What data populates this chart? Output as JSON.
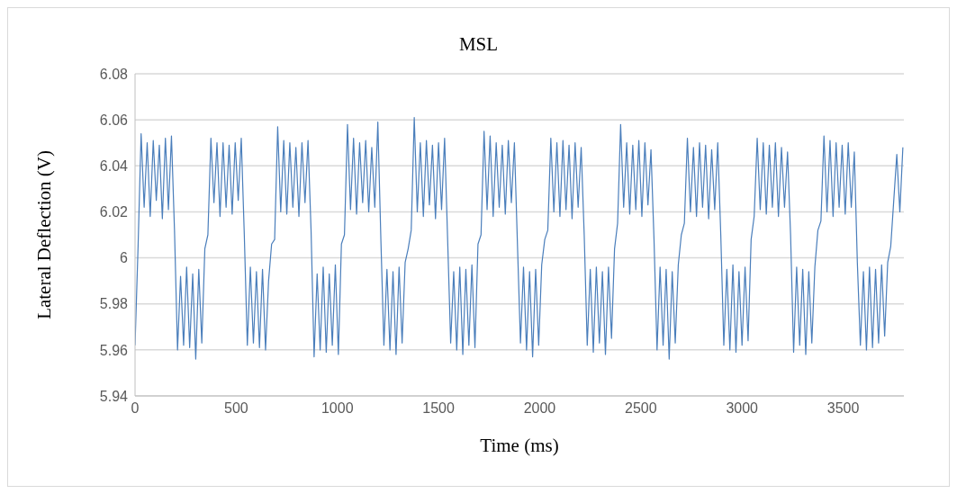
{
  "chart_data": {
    "type": "line",
    "title": "MSL",
    "xlabel": "Time (ms)",
    "ylabel": "Lateral Deflection (V)",
    "xlim": [
      0,
      3800
    ],
    "xticks": [
      0,
      500,
      1000,
      1500,
      2000,
      2500,
      3000,
      3500
    ],
    "ylim": [
      5.94,
      6.08
    ],
    "yticks": [
      5.94,
      5.96,
      5.98,
      6,
      6.02,
      6.04,
      6.06,
      6.08
    ],
    "grid": "y",
    "marker": "none",
    "x": [
      0,
      15,
      30,
      45,
      60,
      75,
      90,
      105,
      120,
      135,
      150,
      165,
      180,
      195,
      210,
      225,
      240,
      255,
      270,
      285,
      300,
      315,
      330,
      345,
      360,
      375,
      390,
      405,
      420,
      435,
      450,
      465,
      480,
      495,
      510,
      525,
      540,
      555,
      570,
      585,
      600,
      615,
      630,
      645,
      660,
      675,
      690,
      705,
      720,
      735,
      750,
      765,
      780,
      795,
      810,
      825,
      840,
      855,
      870,
      885,
      900,
      915,
      930,
      945,
      960,
      975,
      990,
      1005,
      1020,
      1035,
      1050,
      1065,
      1080,
      1095,
      1110,
      1125,
      1140,
      1155,
      1170,
      1185,
      1200,
      1215,
      1230,
      1245,
      1260,
      1275,
      1290,
      1305,
      1320,
      1335,
      1350,
      1365,
      1380,
      1395,
      1410,
      1425,
      1440,
      1455,
      1470,
      1485,
      1500,
      1515,
      1530,
      1545,
      1560,
      1575,
      1590,
      1605,
      1620,
      1635,
      1650,
      1665,
      1680,
      1695,
      1710,
      1725,
      1740,
      1755,
      1770,
      1785,
      1800,
      1815,
      1830,
      1845,
      1860,
      1875,
      1890,
      1905,
      1920,
      1935,
      1950,
      1965,
      1980,
      1995,
      2010,
      2025,
      2040,
      2055,
      2070,
      2085,
      2100,
      2115,
      2130,
      2145,
      2160,
      2175,
      2190,
      2205,
      2220,
      2235,
      2250,
      2265,
      2280,
      2295,
      2310,
      2325,
      2340,
      2355,
      2370,
      2385,
      2400,
      2415,
      2430,
      2445,
      2460,
      2475,
      2490,
      2505,
      2520,
      2535,
      2550,
      2565,
      2580,
      2595,
      2610,
      2625,
      2640,
      2655,
      2670,
      2685,
      2700,
      2715,
      2730,
      2745,
      2760,
      2775,
      2790,
      2805,
      2820,
      2835,
      2850,
      2865,
      2880,
      2895,
      2910,
      2925,
      2940,
      2955,
      2970,
      2985,
      3000,
      3015,
      3030,
      3045,
      3060,
      3075,
      3090,
      3105,
      3120,
      3135,
      3150,
      3165,
      3180,
      3195,
      3210,
      3225,
      3240,
      3255,
      3270,
      3285,
      3300,
      3315,
      3330,
      3345,
      3360,
      3375,
      3390,
      3405,
      3420,
      3435,
      3450,
      3465,
      3480,
      3495,
      3510,
      3525,
      3540,
      3555,
      3570,
      3585,
      3600,
      3615,
      3630,
      3645,
      3660,
      3675,
      3690,
      3705,
      3720,
      3735,
      3750,
      3765,
      3780,
      3795
    ],
    "series": [
      {
        "color": "#4a7ebb",
        "values": [
          5.962,
          6.005,
          6.054,
          6.022,
          6.05,
          6.018,
          6.051,
          6.025,
          6.049,
          6.017,
          6.052,
          6.021,
          6.053,
          6.012,
          5.96,
          5.992,
          5.962,
          5.996,
          5.961,
          5.993,
          5.956,
          5.995,
          5.963,
          6.004,
          6.01,
          6.052,
          6.024,
          6.05,
          6.018,
          6.05,
          6.022,
          6.049,
          6.019,
          6.05,
          6.025,
          6.052,
          6.01,
          5.962,
          5.996,
          5.963,
          5.994,
          5.961,
          5.995,
          5.96,
          5.99,
          6.006,
          6.008,
          6.057,
          6.02,
          6.051,
          6.019,
          6.05,
          6.022,
          6.048,
          6.018,
          6.05,
          6.024,
          6.051,
          6.012,
          5.957,
          5.993,
          5.96,
          5.996,
          5.959,
          5.993,
          5.962,
          5.997,
          5.958,
          6.006,
          6.01,
          6.058,
          6.021,
          6.052,
          6.019,
          6.05,
          6.024,
          6.051,
          6.02,
          6.048,
          6.022,
          6.059,
          6.008,
          5.962,
          5.995,
          5.96,
          5.994,
          5.958,
          5.996,
          5.963,
          5.998,
          6.004,
          6.012,
          6.061,
          6.02,
          6.05,
          6.018,
          6.051,
          6.023,
          6.049,
          6.017,
          6.05,
          6.021,
          6.052,
          6.008,
          5.963,
          5.994,
          5.96,
          5.996,
          5.958,
          5.995,
          5.962,
          5.997,
          5.961,
          6.006,
          6.01,
          6.055,
          6.021,
          6.053,
          6.018,
          6.05,
          6.022,
          6.049,
          6.019,
          6.051,
          6.024,
          6.05,
          6.006,
          5.963,
          5.996,
          5.96,
          5.994,
          5.957,
          5.995,
          5.962,
          5.997,
          6.008,
          6.012,
          6.052,
          6.02,
          6.05,
          6.018,
          6.051,
          6.021,
          6.049,
          6.017,
          6.05,
          6.022,
          6.048,
          6.01,
          5.962,
          5.995,
          5.959,
          5.996,
          5.963,
          5.994,
          5.958,
          5.996,
          5.965,
          6.004,
          6.015,
          6.058,
          6.022,
          6.05,
          6.019,
          6.049,
          6.021,
          6.051,
          6.018,
          6.05,
          6.023,
          6.047,
          6.008,
          5.96,
          5.996,
          5.962,
          5.995,
          5.956,
          5.994,
          5.963,
          5.997,
          6.01,
          6.015,
          6.052,
          6.02,
          6.048,
          6.018,
          6.05,
          6.022,
          6.049,
          6.017,
          6.047,
          6.021,
          6.05,
          6.01,
          5.962,
          5.995,
          5.96,
          5.997,
          5.959,
          5.994,
          5.962,
          5.996,
          5.964,
          6.008,
          6.018,
          6.052,
          6.021,
          6.05,
          6.019,
          6.049,
          6.022,
          6.05,
          6.018,
          6.048,
          6.022,
          6.046,
          6.01,
          5.959,
          5.996,
          5.962,
          5.995,
          5.958,
          5.994,
          5.963,
          5.996,
          6.012,
          6.016,
          6.053,
          6.02,
          6.051,
          6.018,
          6.05,
          6.022,
          6.049,
          6.019,
          6.05,
          6.022,
          6.046,
          5.998,
          5.962,
          5.994,
          5.96,
          5.996,
          5.961,
          5.995,
          5.963,
          5.997,
          5.966,
          5.998,
          6.005,
          6.025,
          6.045,
          6.02,
          6.048
        ]
      }
    ]
  }
}
